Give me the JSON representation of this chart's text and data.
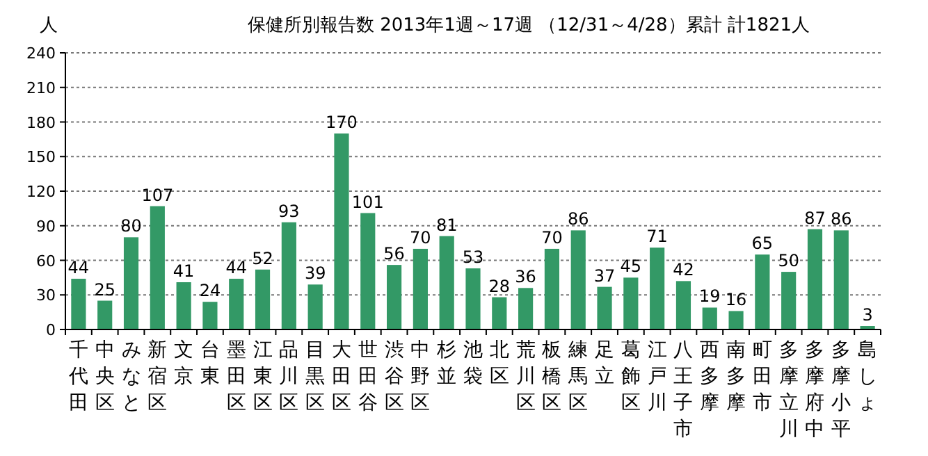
{
  "chart_data": {
    "type": "bar",
    "title": "保健所別報告数  2013年1週～17週 （12/31～4/28）累計   計1821人",
    "ylabel": "人",
    "categories": [
      "千代田",
      "中央区",
      "みなと",
      "新宿区",
      "文京",
      "台東",
      "墨田区",
      "江東区",
      "品川区",
      "目黒区",
      "大田区",
      "世田谷",
      "渋谷区",
      "中野区",
      "杉並",
      "池袋",
      "北区",
      "荒川区",
      "板橋区",
      "練馬区",
      "足立",
      "葛飾区",
      "江戸川",
      "八王子市",
      "西多摩",
      "南多摩",
      "町田市",
      "多摩立川",
      "多摩府中",
      "多摩小平",
      "島しょ"
    ],
    "values": [
      44,
      25,
      80,
      107,
      41,
      24,
      44,
      52,
      93,
      39,
      170,
      101,
      56,
      70,
      81,
      53,
      28,
      36,
      70,
      86,
      37,
      45,
      71,
      42,
      19,
      16,
      65,
      50,
      87,
      86,
      3
    ],
    "color": "#339966",
    "ylim": [
      0,
      240
    ],
    "yticks": [
      0,
      30,
      60,
      90,
      120,
      150,
      180,
      210,
      240
    ],
    "grid": "y",
    "data_labels": true
  }
}
